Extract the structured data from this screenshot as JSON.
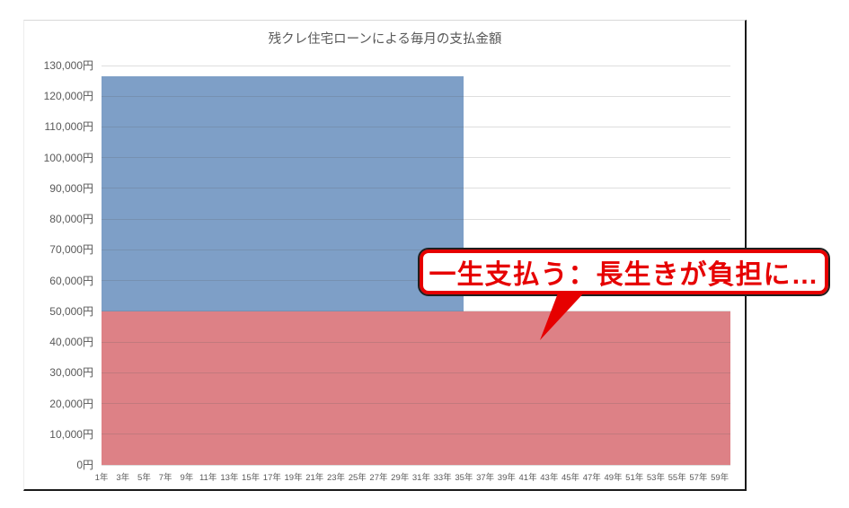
{
  "chart_data": {
    "type": "area",
    "stacked": true,
    "title": "残クレ住宅ローンによる毎月の支払金額",
    "legend": "none",
    "grid": "horizontal",
    "x_axis": {
      "unit": "年",
      "min_year": 1,
      "max_year": 60,
      "ticks": [
        {
          "year": 1,
          "label": "1年"
        },
        {
          "year": 3,
          "label": "3年"
        },
        {
          "year": 5,
          "label": "5年"
        },
        {
          "year": 7,
          "label": "7年"
        },
        {
          "year": 9,
          "label": "9年"
        },
        {
          "year": 11,
          "label": "11年"
        },
        {
          "year": 13,
          "label": "13年"
        },
        {
          "year": 15,
          "label": "15年"
        },
        {
          "year": 17,
          "label": "17年"
        },
        {
          "year": 19,
          "label": "19年"
        },
        {
          "year": 21,
          "label": "21年"
        },
        {
          "year": 23,
          "label": "23年"
        },
        {
          "year": 25,
          "label": "25年"
        },
        {
          "year": 27,
          "label": "27年"
        },
        {
          "year": 29,
          "label": "29年"
        },
        {
          "year": 31,
          "label": "31年"
        },
        {
          "year": 33,
          "label": "33年"
        },
        {
          "year": 35,
          "label": "35年"
        },
        {
          "year": 37,
          "label": "37年"
        },
        {
          "year": 39,
          "label": "39年"
        },
        {
          "year": 41,
          "label": "41年"
        },
        {
          "year": 43,
          "label": "43年"
        },
        {
          "year": 45,
          "label": "45年"
        },
        {
          "year": 47,
          "label": "47年"
        },
        {
          "year": 49,
          "label": "49年"
        },
        {
          "year": 51,
          "label": "51年"
        },
        {
          "year": 53,
          "label": "53年"
        },
        {
          "year": 55,
          "label": "55年"
        },
        {
          "year": 57,
          "label": "57年"
        },
        {
          "year": 59,
          "label": "59年"
        }
      ]
    },
    "y_axis": {
      "unit": "円",
      "min": 0,
      "max": 130000,
      "step": 10000,
      "ticks": [
        {
          "value": 130000,
          "label": "130,000円"
        },
        {
          "value": 120000,
          "label": "120,000円"
        },
        {
          "value": 110000,
          "label": "110,000円"
        },
        {
          "value": 100000,
          "label": "100,000円"
        },
        {
          "value": 90000,
          "label": "90,000円"
        },
        {
          "value": 80000,
          "label": "80,000円"
        },
        {
          "value": 70000,
          "label": "70,000円"
        },
        {
          "value": 60000,
          "label": "60,000円"
        },
        {
          "value": 50000,
          "label": "50,000円"
        },
        {
          "value": 40000,
          "label": "40,000円"
        },
        {
          "value": 30000,
          "label": "30,000円"
        },
        {
          "value": 20000,
          "label": "20,000円"
        },
        {
          "value": 10000,
          "label": "10,000円"
        },
        {
          "value": 0,
          "label": "0円"
        }
      ]
    },
    "series": [
      {
        "id": "lifetime-payment-red",
        "color": "#dd8186",
        "start_year": 1,
        "end_year": 60,
        "y_bottom": 0,
        "y_top": 50000,
        "monthly_amount": 50000
      },
      {
        "id": "loan-term-payment-blue",
        "color": "#7e9fc7",
        "start_year": 1,
        "end_year": 35,
        "y_bottom": 50000,
        "y_top": 126500,
        "monthly_amount": 76500
      }
    ]
  },
  "annotation": {
    "text": "一生支払う：長生きが負担に…",
    "text_color": "#e60000",
    "border_color": "#e60000",
    "outline_color": "#1f1f1f",
    "fill": "#ffffff"
  },
  "colors": {
    "axis_text": "#595959",
    "panel_border_dark": "#1a1a1a",
    "panel_border_light": "#d9d9d9",
    "background": "#ffffff"
  }
}
